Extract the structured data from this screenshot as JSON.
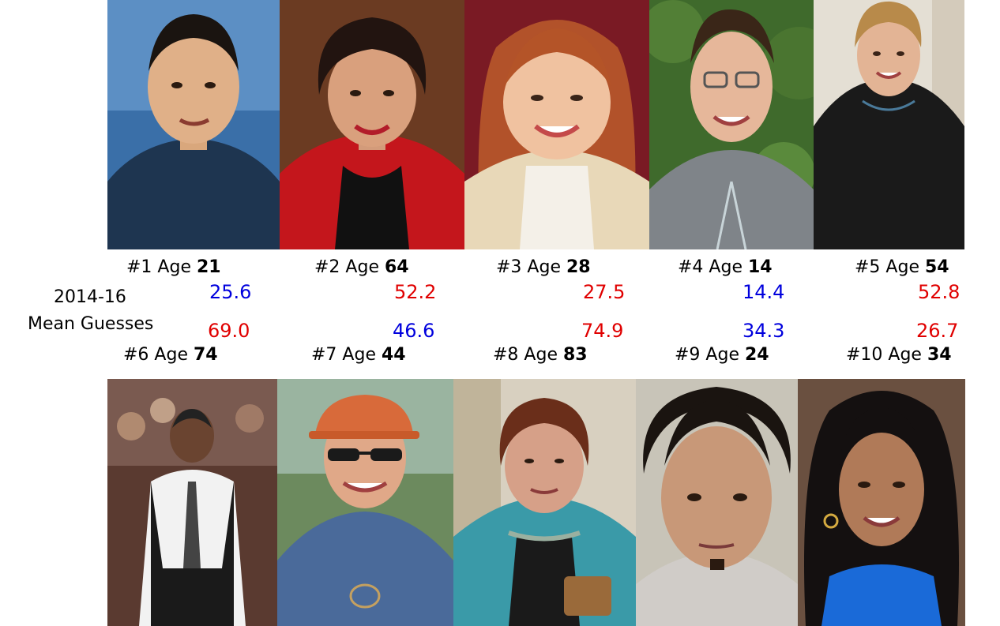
{
  "side_label": {
    "line1": "2014-16",
    "line2": "Mean Guesses"
  },
  "top_row": [
    {
      "prefix": "#1 Age",
      "age": "21",
      "guess": "25.6",
      "guess_color": "#0000dd"
    },
    {
      "prefix": "#2 Age",
      "age": "64",
      "guess": "52.2",
      "guess_color": "#e00000"
    },
    {
      "prefix": "#3 Age",
      "age": "28",
      "guess": "27.5",
      "guess_color": "#e00000"
    },
    {
      "prefix": "#4 Age",
      "age": "14",
      "guess": "14.4",
      "guess_color": "#0000dd"
    },
    {
      "prefix": "#5 Age",
      "age": "54",
      "guess": "52.8",
      "guess_color": "#e00000"
    }
  ],
  "bottom_row": [
    {
      "prefix": "#6 Age",
      "age": "74",
      "guess": "69.0",
      "guess_color": "#e00000"
    },
    {
      "prefix": "#7 Age",
      "age": "44",
      "guess": "46.6",
      "guess_color": "#0000dd"
    },
    {
      "prefix": "#8 Age",
      "age": "83",
      "guess": "74.9",
      "guess_color": "#e00000"
    },
    {
      "prefix": "#9 Age",
      "age": "24",
      "guess": "34.3",
      "guess_color": "#0000dd"
    },
    {
      "prefix": "#10 Age",
      "age": "34",
      "guess": "26.7",
      "guess_color": "#e00000"
    }
  ]
}
